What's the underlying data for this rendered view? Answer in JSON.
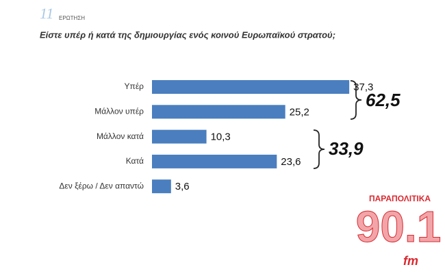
{
  "chart_data": {
    "type": "bar",
    "orientation": "horizontal",
    "question_number": "11",
    "question_label": "ΕΡΩΤΗΣΗ",
    "title": "Είστε υπέρ ή κατά της δημιουργίας ενός κοινού Ευρωπαϊκού στρατού;",
    "categories": [
      "Υπέρ",
      "Μάλλον υπέρ",
      "Μάλλον κατά",
      "Κατά",
      "Δεν ξέρω / Δεν απαντώ"
    ],
    "values": [
      37.3,
      25.2,
      10.3,
      23.6,
      3.6
    ],
    "value_labels": [
      "37,3",
      "25,2",
      "10,3",
      "23,6",
      "3,6"
    ],
    "color": "#4a7ebf",
    "xlim": [
      0,
      40
    ],
    "annotations": [
      "62,5",
      "33,9"
    ],
    "logo": {
      "name": "ΠΑΡΑΠΟΛΙΤΙΚΑ",
      "frequency": "90.1",
      "band": "fm"
    }
  }
}
